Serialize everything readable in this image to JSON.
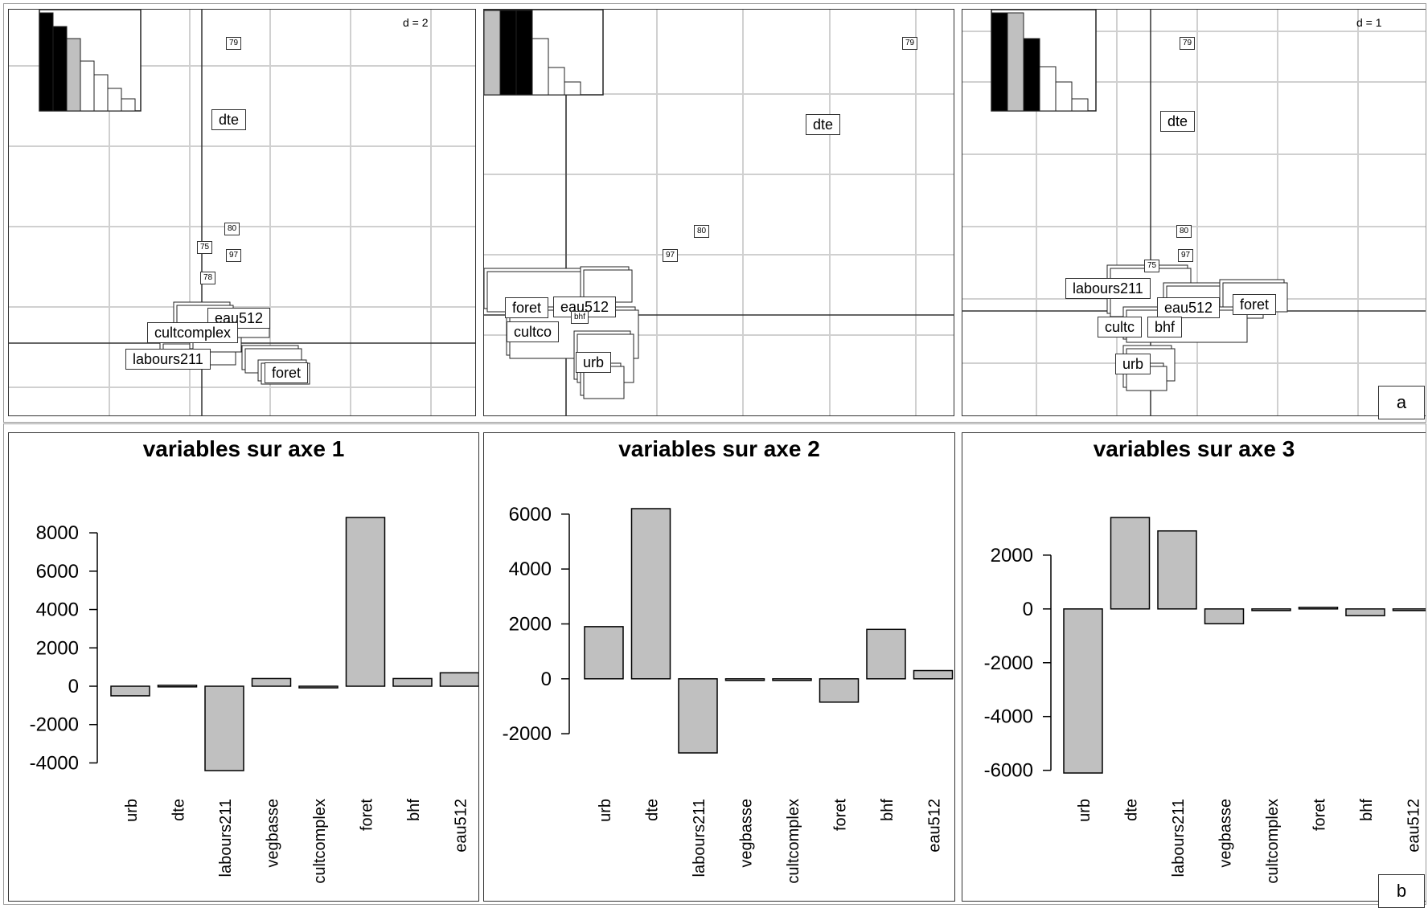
{
  "figure_labels": {
    "a": "a",
    "b": "b"
  },
  "scatter_panels": [
    {
      "scale": "d = 2",
      "labels": [
        {
          "text": "79",
          "small": true
        },
        {
          "text": "dte",
          "small": false
        },
        {
          "text": "80",
          "small": true
        },
        {
          "text": "75",
          "small": true
        },
        {
          "text": "97",
          "small": true
        },
        {
          "text": "78",
          "small": true
        },
        {
          "text": "eau512",
          "small": false
        },
        {
          "text": "cultcomplex",
          "small": false
        },
        {
          "text": "labours211",
          "small": false
        },
        {
          "text": "foret",
          "small": false
        }
      ]
    },
    {
      "scale": "",
      "labels": [
        {
          "text": "79",
          "small": true
        },
        {
          "text": "dte",
          "small": false
        },
        {
          "text": "80",
          "small": true
        },
        {
          "text": "97",
          "small": true
        },
        {
          "text": "foret",
          "small": false
        },
        {
          "text": "eau512",
          "small": false
        },
        {
          "text": "cultco",
          "small": false
        },
        {
          "text": "bhf",
          "small": true
        },
        {
          "text": "urb",
          "small": false
        }
      ]
    },
    {
      "scale": "d = 1",
      "labels": [
        {
          "text": "79",
          "small": true
        },
        {
          "text": "dte",
          "small": false
        },
        {
          "text": "80",
          "small": true
        },
        {
          "text": "97",
          "small": true
        },
        {
          "text": "75",
          "small": true
        },
        {
          "text": "labours211",
          "small": false
        },
        {
          "text": "foret",
          "small": false
        },
        {
          "text": "eau512",
          "small": false
        },
        {
          "text": "cultc",
          "small": false
        },
        {
          "text": "bhf",
          "small": false
        },
        {
          "text": "urb",
          "small": false
        }
      ]
    }
  ],
  "chart_data": [
    {
      "type": "bar",
      "title": "variables sur axe 1",
      "categories": [
        "urb",
        "dte",
        "labours211",
        "vegbasse",
        "cultcomplex",
        "foret",
        "bhf",
        "eau512"
      ],
      "values": [
        -500,
        50,
        -4400,
        400,
        0,
        8800,
        400,
        700
      ],
      "yticks": [
        "8000",
        "6000",
        "4000",
        "2000",
        "0",
        "-2000",
        "-4000"
      ],
      "ylim": [
        -4400,
        8800
      ],
      "bar_color": "#c0c0c0"
    },
    {
      "type": "bar",
      "title": "variables sur axe 2",
      "categories": [
        "urb",
        "dte",
        "labours211",
        "vegbasse",
        "cultcomplex",
        "foret",
        "bhf",
        "eau512"
      ],
      "values": [
        1900,
        6200,
        -2700,
        0,
        0,
        -850,
        1800,
        300
      ],
      "yticks": [
        "6000",
        "4000",
        "2000",
        "0",
        "-2000"
      ],
      "ylim": [
        -2700,
        6200
      ],
      "bar_color": "#c0c0c0"
    },
    {
      "type": "bar",
      "title": "variables sur axe 3",
      "categories": [
        "urb",
        "dte",
        "labours211",
        "vegbasse",
        "cultcomplex",
        "foret",
        "bhf",
        "eau512"
      ],
      "values": [
        -6100,
        3400,
        2900,
        -550,
        -60,
        60,
        -250,
        0
      ],
      "yticks": [
        "2000",
        "0",
        "-2000",
        "-4000",
        "-6000"
      ],
      "ylim": [
        -6100,
        3400
      ],
      "bar_color": "#c0c0c0"
    }
  ]
}
